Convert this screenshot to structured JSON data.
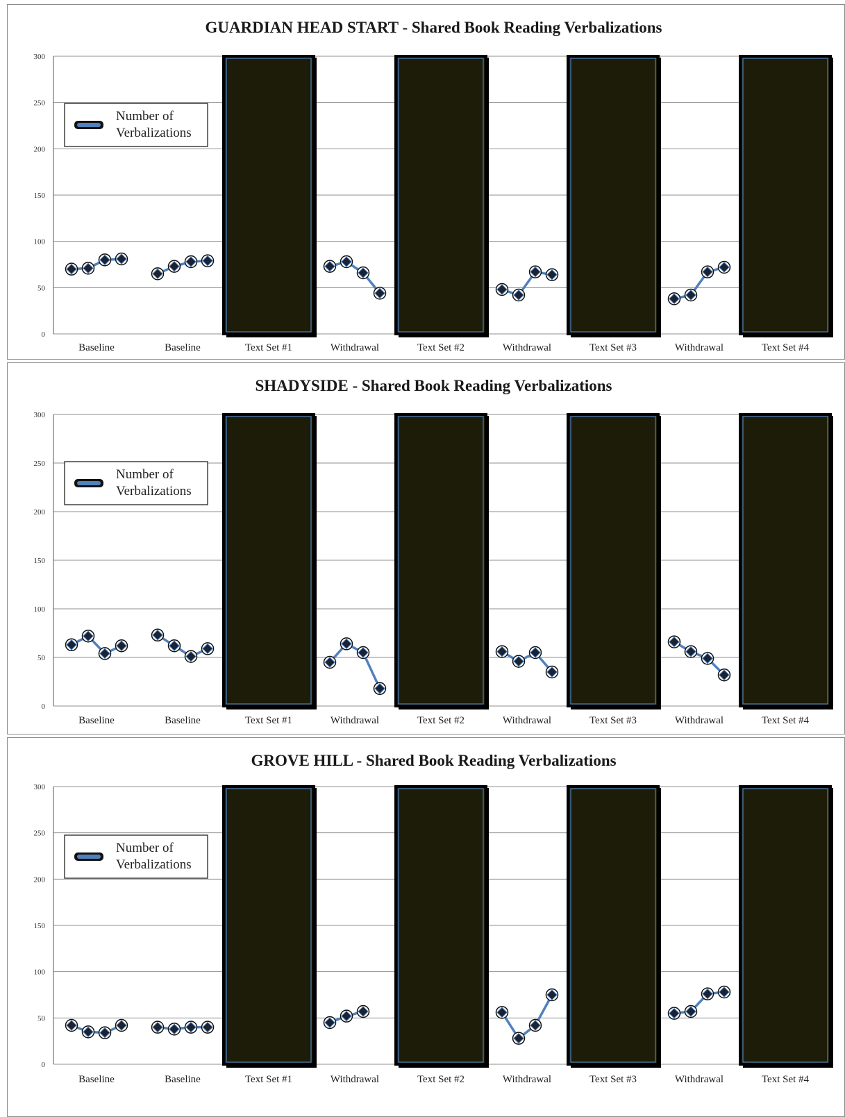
{
  "colors": {
    "series": "#4f81bd",
    "marker": "#1a2233",
    "bar_fill": "#1c1c08",
    "bar_edge": "#4f81bd",
    "grid": "#8f8f8f"
  },
  "chart_data": [
    {
      "type": "line",
      "title": "GUARDIAN HEAD START - Shared Book Reading Verbalizations",
      "ylim": [
        0,
        300
      ],
      "yticks": [
        0,
        50,
        100,
        150,
        200,
        250,
        300
      ],
      "grid": true,
      "legend": {
        "label": "Number of Verbalizations",
        "placement": "upper-left"
      },
      "series": [
        {
          "name": "Number of Verbalizations"
        }
      ],
      "phases": [
        {
          "label": "Baseline",
          "kind": "line",
          "values": [
            70,
            71,
            80,
            81
          ]
        },
        {
          "label": "Baseline",
          "kind": "line",
          "values": [
            65,
            73,
            78,
            79
          ]
        },
        {
          "label": "Text Set #1",
          "kind": "bar",
          "value": 300
        },
        {
          "label": "Withdrawal",
          "kind": "line",
          "values": [
            73,
            78,
            66,
            44
          ]
        },
        {
          "label": "Text Set #2",
          "kind": "bar",
          "value": 300
        },
        {
          "label": "Withdrawal",
          "kind": "line",
          "values": [
            48,
            42,
            67,
            64
          ]
        },
        {
          "label": "Text Set #3",
          "kind": "bar",
          "value": 300
        },
        {
          "label": "Withdrawal",
          "kind": "line",
          "values": [
            38,
            42,
            67,
            72
          ]
        },
        {
          "label": "Text Set #4",
          "kind": "bar",
          "value": 300
        }
      ]
    },
    {
      "type": "line",
      "title": "SHADYSIDE - Shared Book Reading Verbalizations",
      "ylim": [
        0,
        300
      ],
      "yticks": [
        0,
        50,
        100,
        150,
        200,
        250,
        300
      ],
      "grid": true,
      "legend": {
        "label": "Number of Verbalizations",
        "placement": "upper-left"
      },
      "series": [
        {
          "name": "Number of Verbalizations"
        }
      ],
      "phases": [
        {
          "label": "Baseline",
          "kind": "line",
          "values": [
            63,
            72,
            54,
            62
          ]
        },
        {
          "label": "Baseline",
          "kind": "line",
          "values": [
            73,
            62,
            51,
            59
          ]
        },
        {
          "label": "Text Set #1",
          "kind": "bar",
          "value": 300
        },
        {
          "label": "Withdrawal",
          "kind": "line",
          "values": [
            45,
            64,
            55,
            18
          ]
        },
        {
          "label": "Text Set #2",
          "kind": "bar",
          "value": 300
        },
        {
          "label": "Withdrawal",
          "kind": "line",
          "values": [
            56,
            46,
            55,
            35
          ]
        },
        {
          "label": "Text Set #3",
          "kind": "bar",
          "value": 300
        },
        {
          "label": "Withdrawal",
          "kind": "line",
          "values": [
            66,
            56,
            49,
            32
          ]
        },
        {
          "label": "Text Set #4",
          "kind": "bar",
          "value": 300
        }
      ]
    },
    {
      "type": "line",
      "title": "GROVE HILL - Shared Book Reading Verbalizations",
      "ylim": [
        0,
        300
      ],
      "yticks": [
        0,
        50,
        100,
        150,
        200,
        250,
        300
      ],
      "grid": true,
      "legend": {
        "label": "Number of Verbalizations",
        "placement": "upper-left"
      },
      "series": [
        {
          "name": "Number of Verbalizations"
        }
      ],
      "phases": [
        {
          "label": "Baseline",
          "kind": "line",
          "values": [
            42,
            35,
            34,
            42
          ]
        },
        {
          "label": "Baseline",
          "kind": "line",
          "values": [
            40,
            38,
            40,
            40
          ]
        },
        {
          "label": "Text Set #1",
          "kind": "bar",
          "value": 300
        },
        {
          "label": "Withdrawal",
          "kind": "line",
          "values": [
            45,
            52,
            57
          ]
        },
        {
          "label": "Text Set #2",
          "kind": "bar",
          "value": 300
        },
        {
          "label": "Withdrawal",
          "kind": "line",
          "values": [
            56,
            28,
            42,
            75
          ]
        },
        {
          "label": "Text Set #3",
          "kind": "bar",
          "value": 300
        },
        {
          "label": "Withdrawal",
          "kind": "line",
          "values": [
            55,
            57,
            76,
            78
          ]
        },
        {
          "label": "Text Set #4",
          "kind": "bar",
          "value": 300
        }
      ]
    }
  ]
}
